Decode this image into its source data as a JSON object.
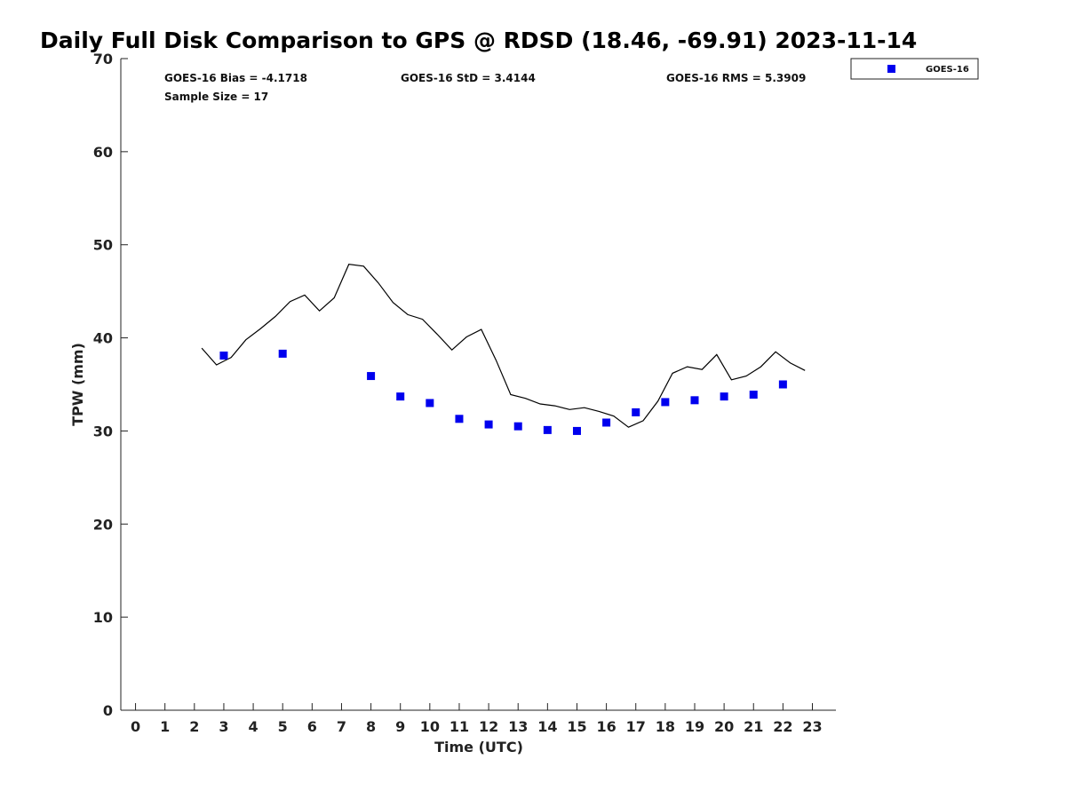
{
  "chart_data": {
    "type": "scatter",
    "title": "Daily Full Disk Comparison to GPS @ RDSD (18.46, -69.91) 2023-11-14",
    "xlabel": "Time (UTC)",
    "ylabel": "TPW (mm)",
    "xlim": [
      -0.5,
      23.8
    ],
    "ylim": [
      0,
      70
    ],
    "xticks": [
      "0",
      "1",
      "2",
      "3",
      "4",
      "5",
      "6",
      "7",
      "8",
      "9",
      "10",
      "11",
      "12",
      "13",
      "14",
      "15",
      "16",
      "17",
      "18",
      "19",
      "20",
      "21",
      "22",
      "23"
    ],
    "yticks": [
      "0",
      "10",
      "20",
      "30",
      "40",
      "50",
      "60",
      "70"
    ],
    "grid": false,
    "legend_position": "top-right, outside plot",
    "stats": {
      "bias": "GOES-16 Bias = -4.1718",
      "std": "GOES-16 StD = 3.4144",
      "rms": "GOES-16 RMS = 5.3909",
      "sample_size": "Sample Size = 17"
    },
    "series": [
      {
        "name": "GOES-16",
        "kind": "markers",
        "color": "#0000ee",
        "points": [
          [
            3.0,
            38.1
          ],
          [
            5.0,
            38.3
          ],
          [
            8.0,
            35.9
          ],
          [
            9.0,
            33.7
          ],
          [
            10.0,
            33.0
          ],
          [
            11.0,
            31.3
          ],
          [
            12.0,
            30.7
          ],
          [
            13.0,
            30.5
          ],
          [
            14.0,
            30.1
          ],
          [
            15.0,
            30.0
          ],
          [
            16.0,
            30.9
          ],
          [
            17.0,
            32.0
          ],
          [
            18.0,
            33.1
          ],
          [
            19.0,
            33.3
          ],
          [
            20.0,
            33.7
          ],
          [
            21.0,
            33.9
          ],
          [
            22.0,
            35.0
          ]
        ]
      },
      {
        "kind": "line",
        "color": "#000000",
        "points": [
          [
            2.25,
            38.9
          ],
          [
            2.75,
            37.1
          ],
          [
            3.25,
            37.9
          ],
          [
            3.75,
            39.8
          ],
          [
            4.25,
            41.0
          ],
          [
            4.75,
            42.3
          ],
          [
            5.25,
            43.9
          ],
          [
            5.75,
            44.6
          ],
          [
            6.25,
            42.9
          ],
          [
            6.75,
            44.3
          ],
          [
            7.25,
            47.9
          ],
          [
            7.75,
            47.7
          ],
          [
            8.25,
            45.9
          ],
          [
            8.75,
            43.8
          ],
          [
            9.25,
            42.5
          ],
          [
            9.75,
            42.0
          ],
          [
            10.25,
            40.4
          ],
          [
            10.75,
            38.7
          ],
          [
            11.25,
            40.1
          ],
          [
            11.75,
            40.9
          ],
          [
            12.25,
            37.6
          ],
          [
            12.75,
            33.9
          ],
          [
            13.25,
            33.5
          ],
          [
            13.75,
            32.9
          ],
          [
            14.25,
            32.7
          ],
          [
            14.75,
            32.3
          ],
          [
            15.25,
            32.5
          ],
          [
            15.75,
            32.1
          ],
          [
            16.25,
            31.6
          ],
          [
            16.75,
            30.4
          ],
          [
            17.25,
            31.1
          ],
          [
            17.75,
            33.2
          ],
          [
            18.25,
            36.2
          ],
          [
            18.75,
            36.9
          ],
          [
            19.25,
            36.6
          ],
          [
            19.75,
            38.2
          ],
          [
            20.25,
            35.5
          ],
          [
            20.75,
            35.9
          ],
          [
            21.25,
            36.9
          ],
          [
            21.75,
            38.5
          ],
          [
            22.25,
            37.3
          ],
          [
            22.75,
            36.5
          ]
        ]
      }
    ]
  }
}
